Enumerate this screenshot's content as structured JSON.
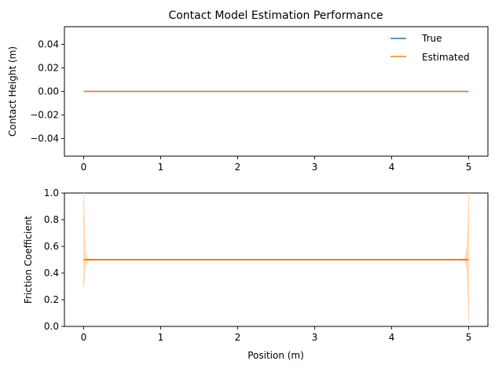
{
  "colors": {
    "true": "#1f77b4",
    "estimated": "#ff7f0e",
    "band": "#ffd6ae"
  },
  "chart_data": [
    {
      "type": "line",
      "title": "Contact Model Estimation Performance",
      "xlabel": "",
      "ylabel": "Contact Height (m)",
      "xlim": [
        -0.25,
        5.25
      ],
      "ylim": [
        -0.055,
        0.055
      ],
      "xticks": [
        0,
        1,
        2,
        3,
        4,
        5
      ],
      "xtick_labels": [
        "0",
        "1",
        "2",
        "3",
        "4",
        "5"
      ],
      "yticks": [
        -0.04,
        -0.02,
        0.0,
        0.02,
        0.04
      ],
      "ytick_labels": [
        "−0.04",
        "−0.02",
        "0.00",
        "0.02",
        "0.04"
      ],
      "grid": false,
      "legend": {
        "placement": "top-right",
        "frame": false
      },
      "series": [
        {
          "name": "True",
          "x": [
            0,
            5
          ],
          "y": [
            0.0,
            0.0
          ],
          "color_key": "true"
        },
        {
          "name": "Estimated",
          "x": [
            0,
            5
          ],
          "y": [
            0.0,
            0.0
          ],
          "color_key": "estimated"
        }
      ]
    },
    {
      "type": "line",
      "title": "",
      "xlabel": "Position (m)",
      "ylabel": "Friction Coefficient",
      "xlim": [
        -0.25,
        5.25
      ],
      "ylim": [
        0.0,
        1.0
      ],
      "xticks": [
        0,
        1,
        2,
        3,
        4,
        5
      ],
      "xtick_labels": [
        "0",
        "1",
        "2",
        "3",
        "4",
        "5"
      ],
      "yticks": [
        0.0,
        0.2,
        0.4,
        0.6,
        0.8,
        1.0
      ],
      "ytick_labels": [
        "0.0",
        "0.2",
        "0.4",
        "0.6",
        "0.8",
        "1.0"
      ],
      "grid": false,
      "series": [
        {
          "x": [
            0,
            5
          ],
          "y": [
            0.5,
            0.5
          ],
          "color_key": "true"
        },
        {
          "x": [
            0,
            5
          ],
          "y": [
            0.5,
            0.5
          ],
          "color_key": "estimated"
        }
      ],
      "uncertainty_band": {
        "color_key": "estimated",
        "x": [
          0.0,
          0.02,
          0.05,
          0.1,
          0.5,
          4.5,
          4.9,
          4.95,
          4.98,
          5.0
        ],
        "lower": [
          0.29,
          0.44,
          0.49,
          0.495,
          0.495,
          0.495,
          0.495,
          0.49,
          0.41,
          0.03
        ],
        "upper": [
          1.0,
          0.56,
          0.51,
          0.505,
          0.505,
          0.505,
          0.505,
          0.51,
          0.6,
          1.0
        ]
      }
    }
  ]
}
